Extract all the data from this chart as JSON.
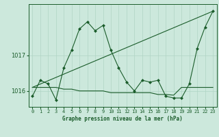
{
  "title": "Graphe pression niveau de la mer (hPa)",
  "background_color": "#cce8dc",
  "grid_color": "#b0d4c4",
  "line_color": "#1a5c2a",
  "x_labels": [
    "0",
    "1",
    "2",
    "3",
    "4",
    "5",
    "6",
    "7",
    "8",
    "9",
    "10",
    "11",
    "12",
    "13",
    "14",
    "15",
    "16",
    "17",
    "18",
    "19",
    "20",
    "21",
    "22",
    "23"
  ],
  "yticks": [
    1016,
    1017
  ],
  "ylim": [
    1015.55,
    1018.45
  ],
  "xlim": [
    -0.5,
    23.5
  ],
  "series1_x": [
    0,
    1,
    2,
    3,
    4,
    5,
    6,
    7,
    8,
    9,
    10,
    11,
    12,
    13,
    14,
    15,
    16,
    17,
    18,
    19,
    20,
    21,
    22,
    23
  ],
  "series1_y": [
    1015.85,
    1016.3,
    1016.2,
    1015.75,
    1016.65,
    1017.15,
    1017.75,
    1017.95,
    1017.7,
    1017.85,
    1017.15,
    1016.65,
    1016.25,
    1016.0,
    1016.3,
    1016.25,
    1016.3,
    1015.85,
    1015.8,
    1015.8,
    1016.2,
    1017.2,
    1017.8,
    1018.25
  ],
  "series2_x": [
    0,
    2,
    3,
    4,
    5,
    6,
    7,
    8,
    9,
    10,
    11,
    12,
    13,
    14,
    15,
    16,
    17,
    18,
    19,
    20,
    21,
    22,
    23
  ],
  "series2_y": [
    1016.1,
    1016.1,
    1016.1,
    1016.05,
    1016.05,
    1016.0,
    1016.0,
    1016.0,
    1016.0,
    1015.95,
    1015.95,
    1015.95,
    1015.95,
    1015.95,
    1015.95,
    1015.9,
    1015.9,
    1015.88,
    1016.1,
    1016.1,
    1016.1,
    1016.1,
    1016.1
  ],
  "series3_x": [
    0,
    23
  ],
  "series3_y": [
    1016.1,
    1018.25
  ]
}
